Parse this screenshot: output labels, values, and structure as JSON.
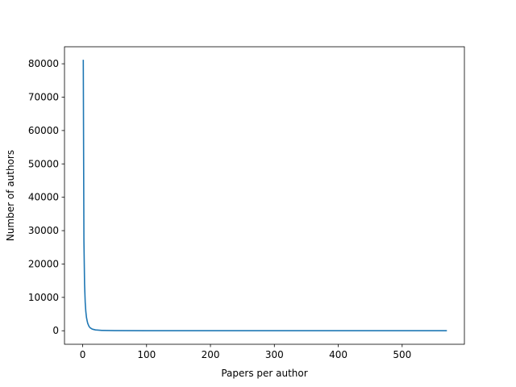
{
  "chart_data": {
    "type": "line",
    "title": "",
    "xlabel": "Papers per author",
    "ylabel": "Number of authors",
    "xlim": [
      -28.4,
      597.4
    ],
    "ylim": [
      -4050,
      85100
    ],
    "xticks": [
      0,
      100,
      200,
      300,
      400,
      500
    ],
    "xtick_labels": [
      "0",
      "100",
      "200",
      "300",
      "400",
      "500"
    ],
    "yticks": [
      0,
      10000,
      20000,
      30000,
      40000,
      50000,
      60000,
      70000,
      80000
    ],
    "ytick_labels": [
      "0",
      "10000",
      "20000",
      "30000",
      "40000",
      "50000",
      "60000",
      "70000",
      "80000"
    ],
    "grid": false,
    "series": [
      {
        "color": "#1f77b4",
        "x": [
          1,
          2,
          3,
          4,
          5,
          6,
          7,
          8,
          10,
          12,
          15,
          20,
          30,
          50,
          100,
          200,
          300,
          400,
          500,
          569
        ],
        "y": [
          81000,
          27000,
          14000,
          8500,
          5700,
          4000,
          3000,
          2200,
          1300,
          850,
          500,
          250,
          100,
          40,
          10,
          3,
          1,
          1,
          1,
          1
        ]
      }
    ]
  }
}
